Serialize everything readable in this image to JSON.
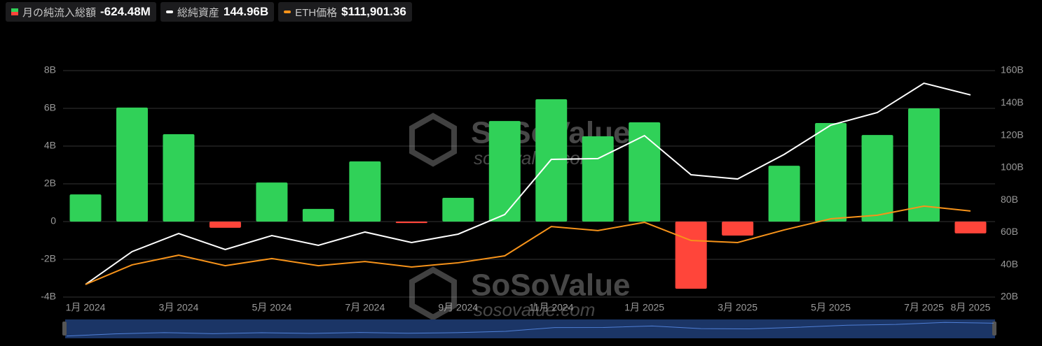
{
  "chart_data": {
    "type": "combo",
    "categories": [
      "1月 2024",
      null,
      "3月 2024",
      null,
      "5月 2024",
      null,
      "7月 2024",
      null,
      "9月 2024",
      null,
      "11月 2024",
      null,
      "1月 2025",
      null,
      "3月 2025",
      null,
      "5月 2025",
      null,
      "7月 2025",
      "8月 2025"
    ],
    "series": [
      {
        "name": "月の純流入総額",
        "type": "bar",
        "axis": "y",
        "color": "#30d158",
        "negative_color": "#ff453a",
        "legend_value": "-624.48M",
        "values": [
          1.44,
          6.04,
          4.63,
          -0.33,
          2.07,
          0.67,
          3.19,
          -0.08,
          1.26,
          5.33,
          6.48,
          4.52,
          5.26,
          -3.56,
          -0.74,
          2.96,
          5.22,
          4.59,
          6.0,
          -0.62448
        ]
      },
      {
        "name": "総純資産",
        "type": "line",
        "axis": "y2",
        "color": "#ffffff",
        "legend_value": "144.96B",
        "values": [
          27.8,
          48.1,
          59.3,
          49.4,
          58.0,
          52.0,
          60.2,
          53.7,
          58.9,
          71.0,
          105.1,
          105.6,
          119.8,
          95.6,
          93.0,
          108.2,
          126.3,
          134.1,
          152.2,
          144.96
        ]
      },
      {
        "name": "ETH価格",
        "type": "line",
        "axis": "y2",
        "color": "#f7931a",
        "legend_value": "$111,901.36",
        "values": [
          27.8,
          39.9,
          45.9,
          39.4,
          43.8,
          39.4,
          42.0,
          38.6,
          41.2,
          45.5,
          63.6,
          61.1,
          66.2,
          55.0,
          53.7,
          61.5,
          68.4,
          70.6,
          76.2,
          73.2
        ]
      }
    ],
    "ylim": [
      -4,
      8
    ],
    "yticks": [
      {
        "value": -4,
        "label": "-4B"
      },
      {
        "value": -2,
        "label": "-2B"
      },
      0,
      {
        "value": 2,
        "label": "2B"
      },
      {
        "value": 4,
        "label": "4B"
      },
      {
        "value": 6,
        "label": "6B"
      },
      {
        "value": 8,
        "label": "8B"
      }
    ],
    "y2lim": [
      20,
      160
    ],
    "y2ticks": [
      {
        "value": 20,
        "label": "20B"
      },
      {
        "value": 40,
        "label": "40B"
      },
      {
        "value": 60,
        "label": "60B"
      },
      {
        "value": 80,
        "label": "80B"
      },
      {
        "value": 100,
        "label": "100B"
      },
      {
        "value": 120,
        "label": "120B"
      },
      {
        "value": 140,
        "label": "140B"
      },
      {
        "value": 160,
        "label": "160B"
      }
    ],
    "grid": true,
    "watermark": {
      "brand": "SoSoValue",
      "url": "sosovalue.com"
    }
  }
}
